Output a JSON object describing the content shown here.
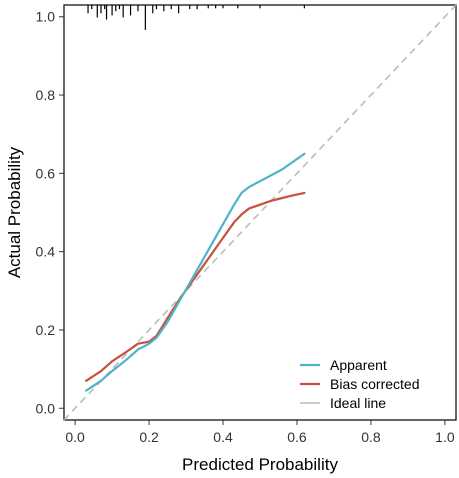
{
  "chart_data": {
    "type": "line",
    "title": "",
    "xlabel": "Predicted Probability",
    "ylabel": "Actual Probability",
    "xlim": [
      -0.03,
      1.03
    ],
    "ylim": [
      -0.03,
      1.03
    ],
    "x_ticks": [
      0.0,
      0.2,
      0.4,
      0.6,
      0.8,
      1.0
    ],
    "x_tick_labels": [
      "0.0",
      "0.2",
      "0.4",
      "0.6",
      "0.8",
      "1.0"
    ],
    "y_ticks": [
      0.0,
      0.2,
      0.4,
      0.6,
      0.8,
      1.0
    ],
    "y_tick_labels": [
      "0.0",
      "0.2",
      "0.4",
      "0.6",
      "0.8",
      "1.0"
    ],
    "grid": false,
    "legend_position": "bottom-right",
    "series": [
      {
        "name": "Apparent",
        "color": "#4fb3c8",
        "style": "solid",
        "x": [
          0.03,
          0.07,
          0.1,
          0.14,
          0.17,
          0.2,
          0.22,
          0.25,
          0.28,
          0.31,
          0.34,
          0.37,
          0.4,
          0.43,
          0.45,
          0.47,
          0.5,
          0.53,
          0.56,
          0.59,
          0.62
        ],
        "y": [
          0.045,
          0.07,
          0.095,
          0.125,
          0.15,
          0.165,
          0.18,
          0.22,
          0.27,
          0.32,
          0.37,
          0.42,
          0.47,
          0.52,
          0.55,
          0.565,
          0.58,
          0.595,
          0.61,
          0.63,
          0.65
        ]
      },
      {
        "name": "Bias corrected",
        "color": "#c8503c",
        "style": "solid",
        "x": [
          0.03,
          0.07,
          0.1,
          0.14,
          0.17,
          0.2,
          0.22,
          0.25,
          0.28,
          0.31,
          0.34,
          0.37,
          0.4,
          0.43,
          0.45,
          0.47,
          0.5,
          0.53,
          0.56,
          0.59,
          0.62
        ],
        "y": [
          0.07,
          0.095,
          0.12,
          0.145,
          0.165,
          0.17,
          0.185,
          0.23,
          0.275,
          0.315,
          0.355,
          0.395,
          0.435,
          0.475,
          0.495,
          0.51,
          0.52,
          0.53,
          0.537,
          0.544,
          0.55
        ]
      },
      {
        "name": "Ideal line",
        "color": "#bbbbbb",
        "style": "dashed",
        "x": [
          -0.03,
          1.03
        ],
        "y": [
          -0.03,
          1.03
        ]
      }
    ],
    "rug": {
      "position": "top",
      "color": "#000000",
      "x": [
        0.035,
        0.045,
        0.06,
        0.07,
        0.08,
        0.085,
        0.1,
        0.11,
        0.12,
        0.13,
        0.15,
        0.17,
        0.19,
        0.21,
        0.22,
        0.24,
        0.26,
        0.28,
        0.31,
        0.33,
        0.36,
        0.38,
        0.4,
        0.44,
        0.5,
        0.62
      ],
      "h": [
        0.02,
        0.01,
        0.03,
        0.02,
        0.01,
        0.035,
        0.025,
        0.015,
        0.01,
        0.03,
        0.025,
        0.015,
        0.06,
        0.02,
        0.01,
        0.015,
        0.01,
        0.02,
        0.01,
        0.01,
        0.008,
        0.008,
        0.008,
        0.008,
        0.008,
        0.008
      ]
    }
  }
}
